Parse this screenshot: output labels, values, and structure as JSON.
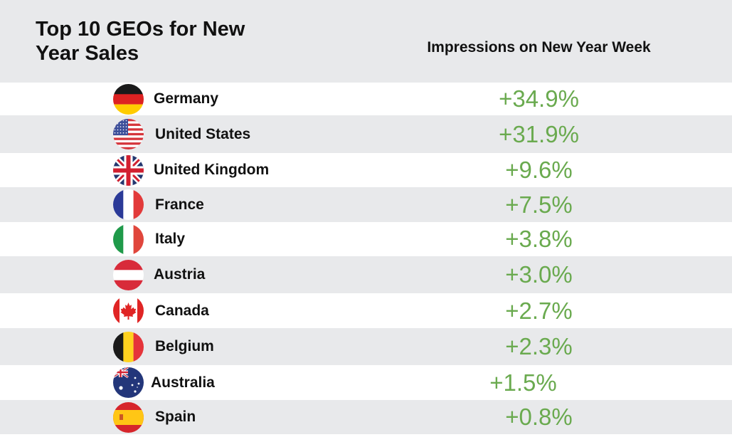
{
  "chart_data": {
    "type": "table",
    "title": "Top 10 GEOs for New Year Sales",
    "column_header": "Impressions on New Year Week",
    "value_color": "#6aaa4f",
    "rows": [
      {
        "country": "Germany",
        "value": "+34.9%",
        "flag": "germany-flag-icon"
      },
      {
        "country": "United States",
        "value": "+31.9%",
        "flag": "usa-flag-icon"
      },
      {
        "country": "United Kingdom",
        "value": "+9.6%",
        "flag": "uk-flag-icon"
      },
      {
        "country": "France",
        "value": "+7.5%",
        "flag": "france-flag-icon"
      },
      {
        "country": "Italy",
        "value": "+3.8%",
        "flag": "italy-flag-icon"
      },
      {
        "country": "Austria",
        "value": "+3.0%",
        "flag": "austria-flag-icon"
      },
      {
        "country": "Canada",
        "value": "+2.7%",
        "flag": "canada-flag-icon"
      },
      {
        "country": "Belgium",
        "value": "+2.3%",
        "flag": "belgium-flag-icon"
      },
      {
        "country": "Australia",
        "value": "+1.5%",
        "flag": "australia-flag-icon"
      },
      {
        "country": "Spain",
        "value": "+0.8%",
        "flag": "spain-flag-icon"
      }
    ]
  }
}
